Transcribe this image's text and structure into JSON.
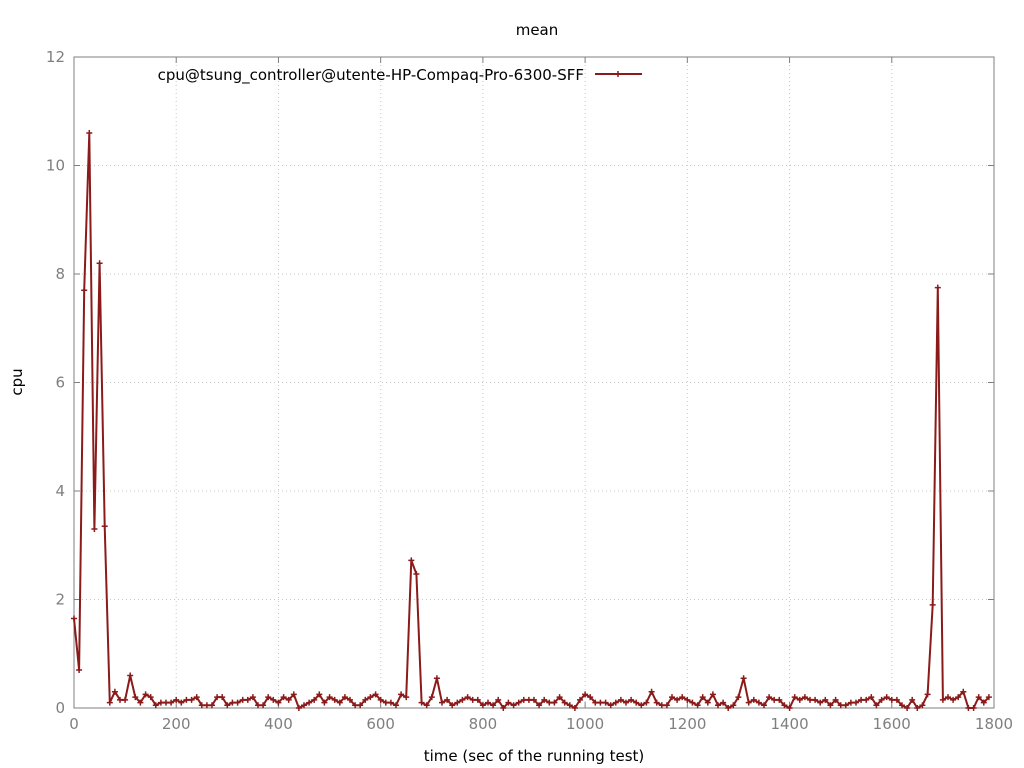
{
  "chart_data": {
    "type": "line",
    "title": "mean",
    "xlabel": "time (sec of the running test)",
    "ylabel": "cpu",
    "xlim": [
      0,
      1800
    ],
    "ylim": [
      0,
      12
    ],
    "x_ticks": [
      0,
      200,
      400,
      600,
      800,
      1000,
      1200,
      1400,
      1600,
      1800
    ],
    "y_ticks": [
      0,
      2,
      4,
      6,
      8,
      10,
      12
    ],
    "grid": true,
    "legend_position": "top-left",
    "colors": {
      "series": "#8b1a1a",
      "axis": "#7f7f7f"
    },
    "series": [
      {
        "name": "cpu@tsung_controller@utente-HP-Compaq-Pro-6300-SFF",
        "x": [
          0,
          10,
          20,
          30,
          40,
          50,
          60,
          70,
          80,
          90,
          100,
          110,
          120,
          130,
          140,
          150,
          160,
          170,
          180,
          190,
          200,
          210,
          220,
          230,
          240,
          250,
          260,
          270,
          280,
          290,
          300,
          310,
          320,
          330,
          340,
          350,
          360,
          370,
          380,
          390,
          400,
          410,
          420,
          430,
          440,
          450,
          460,
          470,
          480,
          490,
          500,
          510,
          520,
          530,
          540,
          550,
          560,
          570,
          580,
          590,
          600,
          610,
          620,
          630,
          640,
          650,
          660,
          670,
          680,
          690,
          700,
          710,
          720,
          730,
          740,
          750,
          760,
          770,
          780,
          790,
          800,
          810,
          820,
          830,
          840,
          850,
          860,
          870,
          880,
          890,
          900,
          910,
          920,
          930,
          940,
          950,
          960,
          970,
          980,
          990,
          1000,
          1010,
          1020,
          1030,
          1040,
          1050,
          1060,
          1070,
          1080,
          1090,
          1100,
          1110,
          1120,
          1130,
          1140,
          1150,
          1160,
          1170,
          1180,
          1190,
          1200,
          1210,
          1220,
          1230,
          1240,
          1250,
          1260,
          1270,
          1280,
          1290,
          1300,
          1310,
          1320,
          1330,
          1340,
          1350,
          1360,
          1370,
          1380,
          1390,
          1400,
          1410,
          1420,
          1430,
          1440,
          1450,
          1460,
          1470,
          1480,
          1490,
          1500,
          1510,
          1520,
          1530,
          1540,
          1550,
          1560,
          1570,
          1580,
          1590,
          1600,
          1610,
          1620,
          1630,
          1640,
          1650,
          1660,
          1670,
          1680,
          1690,
          1700,
          1710,
          1720,
          1730,
          1740,
          1750,
          1760,
          1770,
          1780,
          1790
        ],
        "y": [
          1.65,
          0.7,
          7.7,
          10.6,
          3.3,
          8.2,
          3.35,
          0.1,
          0.3,
          0.15,
          0.15,
          0.6,
          0.2,
          0.1,
          0.25,
          0.2,
          0.05,
          0.1,
          0.1,
          0.1,
          0.15,
          0.1,
          0.15,
          0.15,
          0.2,
          0.05,
          0.05,
          0.05,
          0.2,
          0.2,
          0.05,
          0.1,
          0.1,
          0.15,
          0.15,
          0.2,
          0.05,
          0.05,
          0.2,
          0.15,
          0.1,
          0.2,
          0.15,
          0.25,
          0.0,
          0.05,
          0.1,
          0.15,
          0.25,
          0.1,
          0.2,
          0.15,
          0.1,
          0.2,
          0.15,
          0.05,
          0.05,
          0.15,
          0.2,
          0.25,
          0.15,
          0.1,
          0.1,
          0.05,
          0.25,
          0.2,
          2.72,
          2.47,
          0.1,
          0.05,
          0.2,
          0.55,
          0.1,
          0.15,
          0.05,
          0.1,
          0.15,
          0.2,
          0.15,
          0.15,
          0.05,
          0.1,
          0.05,
          0.15,
          0.0,
          0.1,
          0.05,
          0.1,
          0.15,
          0.15,
          0.15,
          0.05,
          0.15,
          0.1,
          0.1,
          0.2,
          0.1,
          0.05,
          0.0,
          0.15,
          0.25,
          0.2,
          0.1,
          0.1,
          0.1,
          0.05,
          0.1,
          0.15,
          0.1,
          0.15,
          0.1,
          0.05,
          0.1,
          0.3,
          0.1,
          0.05,
          0.05,
          0.2,
          0.15,
          0.2,
          0.15,
          0.1,
          0.05,
          0.2,
          0.1,
          0.25,
          0.05,
          0.1,
          0.0,
          0.05,
          0.2,
          0.55,
          0.1,
          0.15,
          0.1,
          0.05,
          0.2,
          0.15,
          0.15,
          0.05,
          0.0,
          0.2,
          0.15,
          0.2,
          0.15,
          0.15,
          0.1,
          0.15,
          0.05,
          0.15,
          0.05,
          0.05,
          0.1,
          0.1,
          0.15,
          0.15,
          0.2,
          0.05,
          0.15,
          0.2,
          0.15,
          0.15,
          0.05,
          0.0,
          0.15,
          0.0,
          0.05,
          0.25,
          1.9,
          7.75,
          0.15,
          0.2,
          0.15,
          0.2,
          0.3,
          0.0,
          0.0,
          0.2,
          0.1,
          0.2
        ]
      }
    ]
  }
}
